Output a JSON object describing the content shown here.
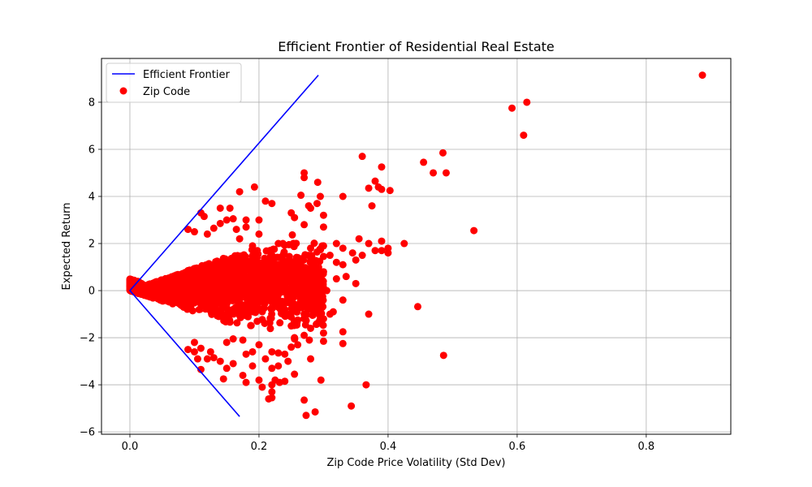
{
  "chart_data": {
    "type": "scatter",
    "title": "Efficient Frontier of Residential Real Estate",
    "xlabel": "Zip Code Price Volatility (Std Dev)",
    "ylabel": "Expected Return",
    "xlim": [
      -0.044,
      0.931
    ],
    "ylim": [
      -6.1,
      9.86
    ],
    "xticks": [
      0.0,
      0.2,
      0.4,
      0.6,
      0.8
    ],
    "xtick_labels": [
      "0.0",
      "0.2",
      "0.4",
      "0.6",
      "0.8"
    ],
    "yticks": [
      -6,
      -4,
      -2,
      0,
      2,
      4,
      6,
      8
    ],
    "ytick_labels": [
      "−6",
      "−4",
      "−2",
      "0",
      "2",
      "4",
      "6",
      "8"
    ],
    "grid": true,
    "legend_position": "top-left",
    "series": [
      {
        "name": "Efficient Frontier",
        "kind": "line",
        "color": "#0000ff",
        "points": [
          [
            0.292,
            9.15
          ],
          [
            0.0,
            0.0
          ],
          [
            0.17,
            -5.35
          ]
        ]
      },
      {
        "name": "Zip Code",
        "kind": "scatter",
        "color": "#ff0000",
        "points": [
          [
            0.887,
            9.15
          ],
          [
            0.615,
            8.0
          ],
          [
            0.592,
            7.75
          ],
          [
            0.61,
            6.6
          ],
          [
            0.485,
            5.85
          ],
          [
            0.455,
            5.45
          ],
          [
            0.47,
            5.0
          ],
          [
            0.49,
            5.0
          ],
          [
            0.36,
            5.7
          ],
          [
            0.39,
            5.25
          ],
          [
            0.27,
            5.0
          ],
          [
            0.27,
            4.8
          ],
          [
            0.291,
            4.6
          ],
          [
            0.38,
            4.65
          ],
          [
            0.37,
            4.35
          ],
          [
            0.385,
            4.4
          ],
          [
            0.39,
            4.3
          ],
          [
            0.403,
            4.25
          ],
          [
            0.33,
            4.0
          ],
          [
            0.295,
            4.0
          ],
          [
            0.265,
            4.05
          ],
          [
            0.193,
            4.4
          ],
          [
            0.17,
            4.2
          ],
          [
            0.21,
            3.8
          ],
          [
            0.22,
            3.7
          ],
          [
            0.277,
            3.6
          ],
          [
            0.28,
            3.5
          ],
          [
            0.29,
            3.7
          ],
          [
            0.375,
            3.6
          ],
          [
            0.25,
            3.3
          ],
          [
            0.255,
            3.1
          ],
          [
            0.3,
            3.2
          ],
          [
            0.11,
            3.3
          ],
          [
            0.115,
            3.15
          ],
          [
            0.15,
            3.0
          ],
          [
            0.14,
            3.5
          ],
          [
            0.155,
            3.5
          ],
          [
            0.165,
            2.6
          ],
          [
            0.27,
            2.8
          ],
          [
            0.3,
            2.7
          ],
          [
            0.09,
            2.6
          ],
          [
            0.1,
            2.5
          ],
          [
            0.533,
            2.55
          ],
          [
            0.425,
            2.0
          ],
          [
            0.355,
            2.2
          ],
          [
            0.37,
            2.0
          ],
          [
            0.39,
            2.1
          ],
          [
            0.39,
            1.7
          ],
          [
            0.4,
            1.8
          ],
          [
            0.4,
            1.6
          ],
          [
            0.38,
            1.7
          ],
          [
            0.33,
            1.8
          ],
          [
            0.36,
            1.5
          ],
          [
            0.35,
            1.3
          ],
          [
            0.345,
            1.6
          ],
          [
            0.32,
            1.2
          ],
          [
            0.31,
            1.5
          ],
          [
            0.3,
            1.45
          ],
          [
            0.28,
            1.3
          ],
          [
            0.26,
            1.4
          ],
          [
            0.33,
            1.1
          ],
          [
            0.28,
            1.8
          ],
          [
            0.32,
            2.0
          ],
          [
            0.3,
            1.9
          ],
          [
            0.335,
            0.6
          ],
          [
            0.35,
            0.3
          ],
          [
            0.32,
            0.5
          ],
          [
            0.3,
            0.8
          ],
          [
            0.29,
            0.4
          ],
          [
            0.305,
            0.0
          ],
          [
            0.28,
            -0.3
          ],
          [
            0.29,
            -0.6
          ],
          [
            0.33,
            -0.4
          ],
          [
            0.31,
            -1.0
          ],
          [
            0.315,
            -0.9
          ],
          [
            0.3,
            -1.2
          ],
          [
            0.29,
            -1.4
          ],
          [
            0.28,
            -1.6
          ],
          [
            0.3,
            -1.8
          ],
          [
            0.27,
            -1.9
          ],
          [
            0.33,
            -1.75
          ],
          [
            0.33,
            -2.25
          ],
          [
            0.3,
            -2.15
          ],
          [
            0.278,
            -2.1
          ],
          [
            0.26,
            -2.3
          ],
          [
            0.255,
            -2.0
          ],
          [
            0.25,
            -2.4
          ],
          [
            0.24,
            -2.7
          ],
          [
            0.245,
            -3.0
          ],
          [
            0.23,
            -3.2
          ],
          [
            0.22,
            -3.3
          ],
          [
            0.21,
            -2.9
          ],
          [
            0.22,
            -2.6
          ],
          [
            0.23,
            -2.65
          ],
          [
            0.255,
            -3.55
          ],
          [
            0.225,
            -3.8
          ],
          [
            0.232,
            -3.9
          ],
          [
            0.22,
            -4.0
          ],
          [
            0.205,
            -4.1
          ],
          [
            0.24,
            -3.85
          ],
          [
            0.296,
            -3.8
          ],
          [
            0.22,
            -4.3
          ],
          [
            0.22,
            -4.55
          ],
          [
            0.215,
            -4.6
          ],
          [
            0.27,
            -4.65
          ],
          [
            0.343,
            -4.9
          ],
          [
            0.287,
            -5.15
          ],
          [
            0.273,
            -5.3
          ],
          [
            0.366,
            -4.0
          ],
          [
            0.37,
            -1.0
          ],
          [
            0.446,
            -0.68
          ],
          [
            0.486,
            -2.75
          ],
          [
            0.28,
            -2.9
          ],
          [
            0.19,
            -3.2
          ],
          [
            0.175,
            -3.6
          ],
          [
            0.2,
            -3.8
          ],
          [
            0.18,
            -3.9
          ],
          [
            0.16,
            -3.1
          ],
          [
            0.15,
            -3.3
          ],
          [
            0.14,
            -3.0
          ],
          [
            0.13,
            -2.85
          ],
          [
            0.125,
            -2.6
          ],
          [
            0.12,
            -2.9
          ],
          [
            0.11,
            -3.35
          ],
          [
            0.145,
            -3.75
          ],
          [
            0.105,
            -2.9
          ],
          [
            0.1,
            -2.6
          ],
          [
            0.09,
            -2.5
          ],
          [
            0.1,
            -2.2
          ],
          [
            0.11,
            -2.45
          ],
          [
            0.15,
            -2.2
          ],
          [
            0.16,
            -2.05
          ],
          [
            0.175,
            -2.1
          ],
          [
            0.2,
            -2.3
          ],
          [
            0.19,
            -2.6
          ],
          [
            0.18,
            -2.7
          ],
          [
            0.25,
            -1.5
          ],
          [
            0.26,
            -1.25
          ],
          [
            0.27,
            -1.0
          ],
          [
            0.24,
            -0.8
          ],
          [
            0.25,
            0.4
          ],
          [
            0.24,
            0.7
          ],
          [
            0.23,
            1.1
          ],
          [
            0.22,
            1.5
          ],
          [
            0.23,
            2.0
          ],
          [
            0.2,
            2.4
          ],
          [
            0.18,
            2.7
          ],
          [
            0.17,
            2.2
          ],
          [
            0.19,
            1.9
          ],
          [
            0.2,
            3.0
          ],
          [
            0.18,
            3.0
          ],
          [
            0.16,
            3.05
          ],
          [
            0.14,
            2.85
          ],
          [
            0.13,
            2.65
          ],
          [
            0.12,
            2.4
          ]
        ],
        "dense_cluster": {
          "note_free": true,
          "x_range": [
            0.0,
            0.3
          ],
          "y_center": 0.3,
          "y_spread": 1.1
        }
      }
    ]
  }
}
